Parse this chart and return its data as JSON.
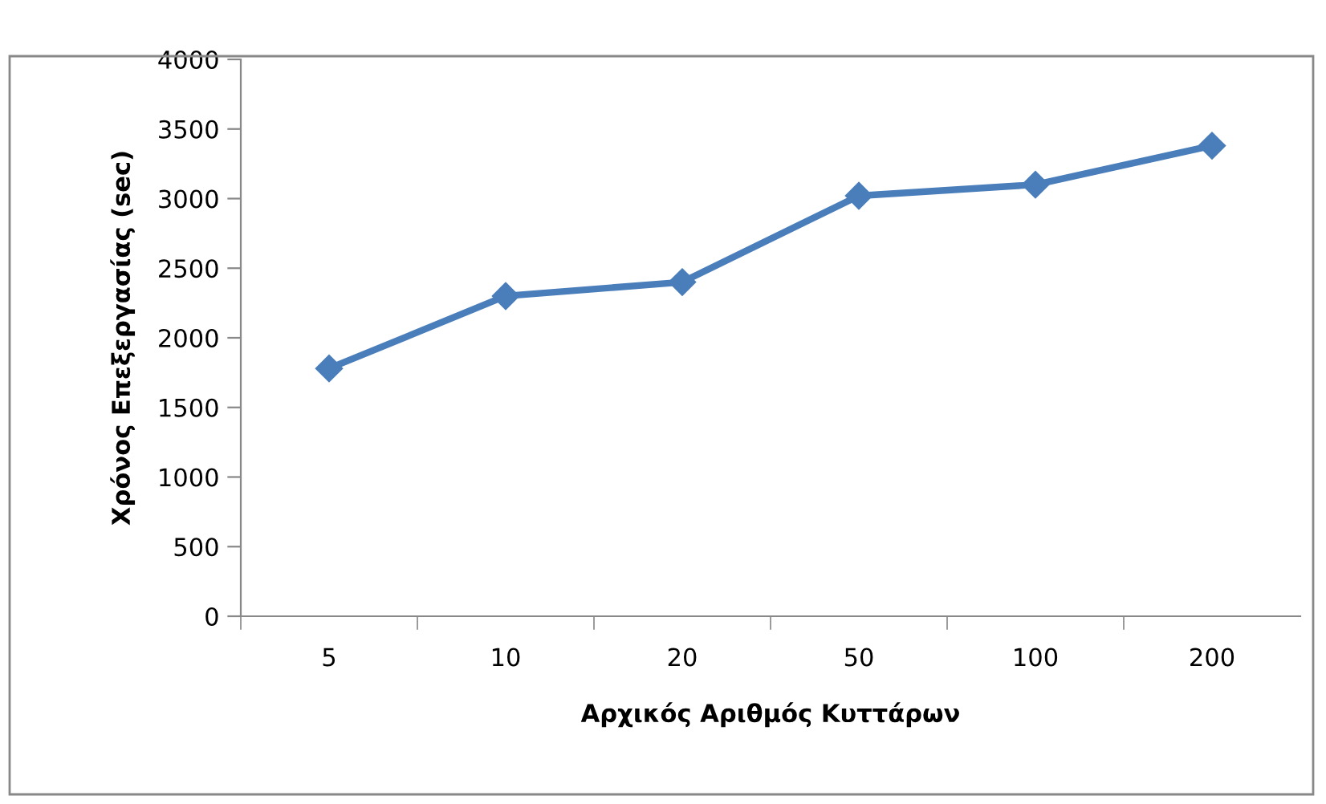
{
  "chart_data": {
    "type": "line",
    "xlabel": "Αρχικός Αριθμός Κυττάρων",
    "ylabel": "Χρόνος Επεξεργασίας (sec)",
    "categories": [
      "5",
      "10",
      "20",
      "50",
      "100",
      "200"
    ],
    "series": [
      {
        "color": "#4a7ebb",
        "values": [
          1780,
          2300,
          2400,
          3020,
          3100,
          3380
        ]
      }
    ],
    "ylim": [
      0,
      4000
    ],
    "yticks": [
      0,
      500,
      1000,
      1500,
      2000,
      2500,
      3000,
      3500,
      4000
    ],
    "grid": false,
    "legend": false,
    "marker": "diamond",
    "line_style": "solid"
  }
}
